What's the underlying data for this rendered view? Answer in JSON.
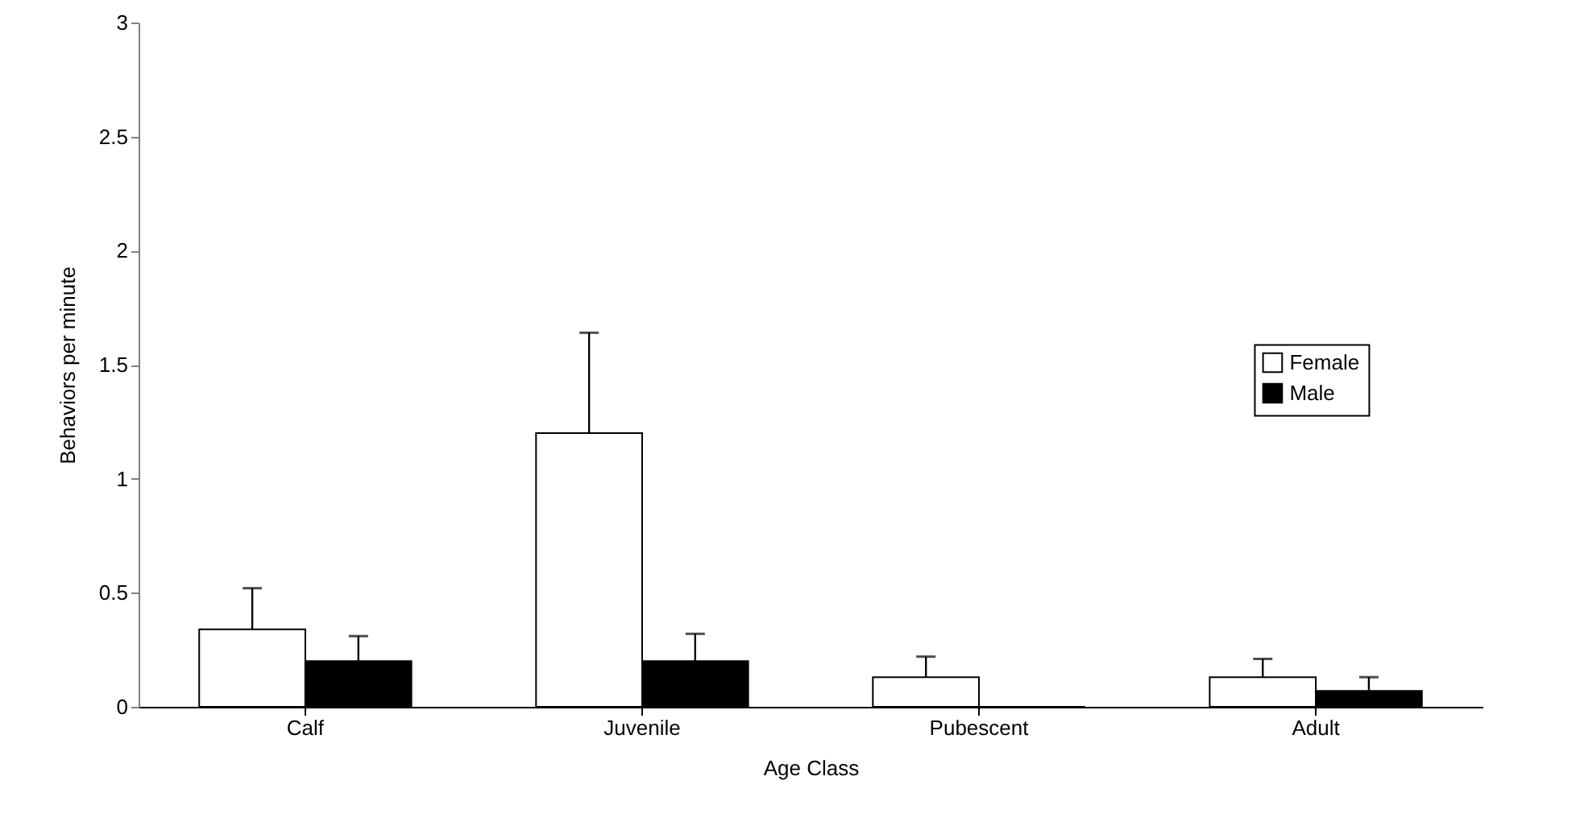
{
  "chart_data": {
    "type": "bar",
    "xlabel": "Age Class",
    "ylabel": "Behaviors per minute",
    "categories": [
      "Calf",
      "Juvenile",
      "Pubescent",
      "Adult"
    ],
    "series": [
      {
        "name": "Female",
        "color": "#ffffff",
        "values": [
          0.34,
          1.2,
          0.13,
          0.13
        ],
        "errors": [
          [
            0.34,
            0.52
          ],
          [
            1.2,
            1.64
          ],
          [
            0.13,
            0.22
          ],
          [
            0.13,
            0.21
          ]
        ]
      },
      {
        "name": "Male",
        "color": "#000000",
        "values": [
          0.2,
          0.2,
          0,
          0.07
        ],
        "errors": [
          [
            0.2,
            0.31
          ],
          [
            0.2,
            0.32
          ],
          null,
          [
            0.07,
            0.13
          ]
        ]
      }
    ],
    "ylim": [
      0,
      3
    ],
    "yticks": [
      0,
      0.5,
      1,
      1.5,
      2,
      2.5,
      3
    ],
    "legend": "right",
    "grid": false
  }
}
